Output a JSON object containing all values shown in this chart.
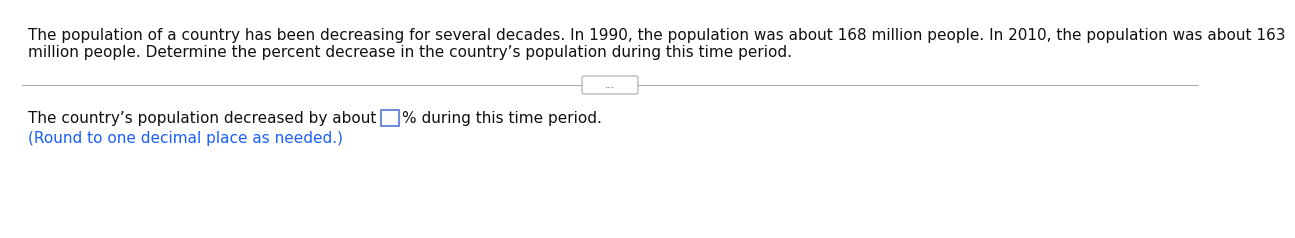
{
  "background_color": "#ffffff",
  "paragraph_line1": "The population of a country has been decreasing for several decades. In 1990, the population was about 168 million people. In 2010, the population was about 163",
  "paragraph_line2": "million people. Determine the percent decrease in the country’s population during this time period.",
  "separator_color": "#b0b0b0",
  "separator_lw": 0.8,
  "dots_text": "...",
  "dots_color": "#555555",
  "pill_edge_color": "#aaaaaa",
  "answer_text_before": "The country’s population decreased by about ",
  "answer_text_after": "% during this time period.",
  "answer_note": "(Round to one decimal place as needed.)",
  "answer_note_color": "#1a5eff",
  "main_text_color": "#111111",
  "font_size": 11.0,
  "box_edge_color": "#5577dd",
  "box_face_color": "#ffffff"
}
